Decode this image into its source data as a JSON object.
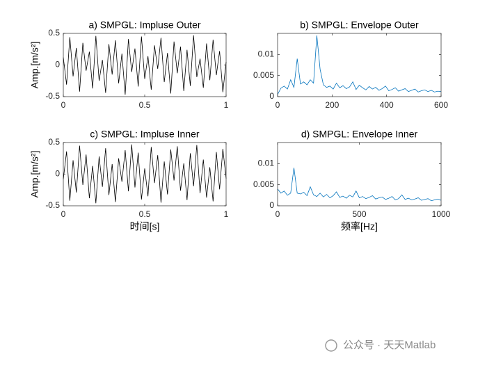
{
  "chart_data": [
    {
      "type": "line",
      "title": "a) SMPGL: Impluse Outer",
      "ylabel": "Amp.[m/s²]",
      "color": "#000000",
      "x": [
        0,
        0.02,
        0.04,
        0.06,
        0.08,
        0.1,
        0.12,
        0.14,
        0.16,
        0.18,
        0.2,
        0.22,
        0.24,
        0.26,
        0.28,
        0.3,
        0.32,
        0.34,
        0.36,
        0.38,
        0.4,
        0.42,
        0.44,
        0.46,
        0.48,
        0.5,
        0.52,
        0.54,
        0.56,
        0.58,
        0.6,
        0.62,
        0.64,
        0.66,
        0.68,
        0.7,
        0.72,
        0.74,
        0.76,
        0.78,
        0.8,
        0.82,
        0.84,
        0.86,
        0.88,
        0.9,
        0.92,
        0.94,
        0.96,
        0.98,
        1
      ],
      "values": [
        0.12,
        -0.31,
        0.44,
        -0.18,
        0.27,
        -0.42,
        0.35,
        -0.09,
        0.21,
        -0.37,
        0.46,
        -0.25,
        0.08,
        -0.44,
        0.33,
        -0.15,
        0.39,
        -0.29,
        0.18,
        -0.47,
        0.41,
        -0.11,
        0.26,
        -0.34,
        0.45,
        -0.22,
        0.14,
        -0.39,
        0.31,
        -0.06,
        0.43,
        -0.27,
        0.19,
        -0.45,
        0.37,
        -0.13,
        0.29,
        -0.41,
        0.24,
        -0.33,
        0.47,
        -0.19,
        0.1,
        -0.36,
        0.34,
        -0.24,
        0.4,
        -0.16,
        0.22,
        -0.43,
        0.05
      ],
      "xlim": [
        0,
        1
      ],
      "xticks": [
        0,
        0.5,
        1
      ],
      "ylim": [
        -0.5,
        0.5
      ],
      "yticks": [
        -0.5,
        0,
        0.5
      ]
    },
    {
      "type": "line",
      "title": "b) SMPGL: Envelope Outer",
      "color": "#0072bd",
      "x": [
        0,
        12,
        24,
        36,
        48,
        60,
        72,
        84,
        96,
        108,
        120,
        132,
        144,
        156,
        168,
        180,
        192,
        204,
        216,
        228,
        240,
        252,
        264,
        276,
        288,
        300,
        312,
        324,
        336,
        348,
        360,
        372,
        384,
        396,
        408,
        420,
        432,
        444,
        456,
        468,
        480,
        492,
        504,
        516,
        528,
        540,
        552,
        564,
        576,
        588,
        600
      ],
      "values": [
        0.0005,
        0.002,
        0.0025,
        0.0018,
        0.004,
        0.0022,
        0.009,
        0.003,
        0.0035,
        0.0028,
        0.004,
        0.0032,
        0.0145,
        0.0065,
        0.0028,
        0.0022,
        0.0025,
        0.0018,
        0.0032,
        0.0021,
        0.0026,
        0.0019,
        0.0023,
        0.0035,
        0.0017,
        0.0027,
        0.0021,
        0.0016,
        0.0024,
        0.0018,
        0.0022,
        0.0015,
        0.0019,
        0.0025,
        0.0014,
        0.0017,
        0.0021,
        0.0013,
        0.0016,
        0.0019,
        0.0012,
        0.0015,
        0.0018,
        0.0011,
        0.0014,
        0.0016,
        0.0012,
        0.0015,
        0.0011,
        0.0013,
        0.0012
      ],
      "xlim": [
        0,
        600
      ],
      "xticks": [
        0,
        200,
        400,
        600
      ],
      "ylim": [
        0,
        0.015
      ],
      "yticks": [
        0,
        0.005,
        0.01
      ]
    },
    {
      "type": "line",
      "title": "c) SMPGL: Impluse Inner",
      "ylabel": "Amp.[m/s²]",
      "xlabel": "时间[s]",
      "color": "#000000",
      "x": [
        0,
        0.02,
        0.04,
        0.06,
        0.08,
        0.1,
        0.12,
        0.14,
        0.16,
        0.18,
        0.2,
        0.22,
        0.24,
        0.26,
        0.28,
        0.3,
        0.32,
        0.34,
        0.36,
        0.38,
        0.4,
        0.42,
        0.44,
        0.46,
        0.48,
        0.5,
        0.52,
        0.54,
        0.56,
        0.58,
        0.6,
        0.62,
        0.64,
        0.66,
        0.68,
        0.7,
        0.72,
        0.74,
        0.76,
        0.78,
        0.8,
        0.82,
        0.84,
        0.86,
        0.88,
        0.9,
        0.92,
        0.94,
        0.96,
        0.98,
        1
      ],
      "values": [
        -0.08,
        0.36,
        -0.42,
        0.22,
        -0.29,
        0.45,
        -0.17,
        0.31,
        -0.38,
        0.13,
        -0.46,
        0.28,
        -0.2,
        0.41,
        -0.33,
        0.16,
        -0.44,
        0.25,
        -0.12,
        0.38,
        -0.27,
        0.47,
        -0.21,
        0.34,
        -0.4,
        0.09,
        -0.35,
        0.43,
        -0.14,
        0.3,
        -0.45,
        0.2,
        -0.32,
        0.39,
        -0.1,
        0.44,
        -0.26,
        0.17,
        -0.41,
        0.33,
        -0.19,
        0.46,
        -0.3,
        0.23,
        -0.37,
        0.11,
        -0.43,
        0.35,
        -0.24,
        0.4,
        -0.07
      ],
      "xlim": [
        0,
        1
      ],
      "xticks": [
        0,
        0.5,
        1
      ],
      "ylim": [
        -0.5,
        0.5
      ],
      "yticks": [
        -0.5,
        0,
        0.5
      ]
    },
    {
      "type": "line",
      "title": "d) SMPGL: Envelope Inner",
      "xlabel": "频率[Hz]",
      "color": "#0072bd",
      "x": [
        0,
        20,
        40,
        60,
        80,
        100,
        120,
        140,
        160,
        180,
        200,
        220,
        240,
        260,
        280,
        300,
        320,
        340,
        360,
        380,
        400,
        420,
        440,
        460,
        480,
        500,
        520,
        540,
        560,
        580,
        600,
        620,
        640,
        660,
        680,
        700,
        720,
        740,
        760,
        780,
        800,
        820,
        840,
        860,
        880,
        900,
        920,
        940,
        960,
        980,
        1000
      ],
      "values": [
        0.004,
        0.003,
        0.0035,
        0.0025,
        0.003,
        0.009,
        0.003,
        0.0028,
        0.0032,
        0.0024,
        0.0045,
        0.0026,
        0.0022,
        0.003,
        0.0021,
        0.0027,
        0.0019,
        0.0024,
        0.0033,
        0.002,
        0.0023,
        0.0018,
        0.0025,
        0.0021,
        0.0035,
        0.0019,
        0.0022,
        0.0017,
        0.002,
        0.0024,
        0.0016,
        0.0019,
        0.0021,
        0.0015,
        0.0018,
        0.0022,
        0.0014,
        0.0017,
        0.0026,
        0.0015,
        0.0018,
        0.0014,
        0.0016,
        0.0019,
        0.0013,
        0.0015,
        0.0017,
        0.0012,
        0.0014,
        0.0016,
        0.0013
      ],
      "xlim": [
        0,
        1000
      ],
      "xticks": [
        0,
        500,
        1000
      ],
      "ylim": [
        0,
        0.015
      ],
      "yticks": [
        0,
        0.005,
        0.01
      ]
    }
  ],
  "watermark": "公众号 · 天天Matlab"
}
